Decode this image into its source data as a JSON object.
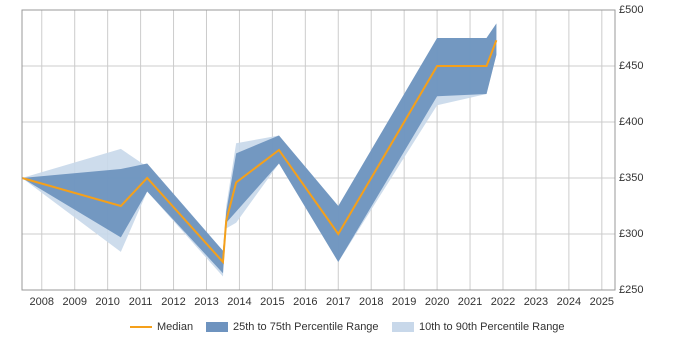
{
  "chart_data": {
    "type": "range_band",
    "x": [
      2007.4,
      2010.4,
      2011.2,
      2013.5,
      2013.6,
      2013.9,
      2015.2,
      2017.0,
      2020.0,
      2021.5,
      2021.8
    ],
    "series": [
      {
        "name": "10th to 90th Percentile Range",
        "color": "#c8d8ea",
        "low": [
          350,
          284,
          338,
          262,
          305,
          310,
          363,
          275,
          415,
          425,
          460
        ],
        "high": [
          350,
          376,
          360,
          285,
          325,
          381,
          388,
          325,
          475,
          475,
          488
        ]
      },
      {
        "name": "25th to 75th Percentile Range",
        "color": "#6e93bf",
        "low": [
          350,
          297,
          338,
          265,
          310,
          320,
          363,
          275,
          423,
          425,
          460
        ],
        "high": [
          350,
          358,
          363,
          285,
          320,
          372,
          388,
          325,
          475,
          475,
          488
        ]
      },
      {
        "name": "Median",
        "color": "#f5a01a",
        "values": [
          350,
          325,
          350,
          275,
          312,
          346,
          375,
          300,
          450,
          450,
          473
        ]
      }
    ],
    "xlim": [
      2007.4,
      2025.4
    ],
    "xticks": [
      2008,
      2009,
      2010,
      2011,
      2012,
      2013,
      2014,
      2015,
      2016,
      2017,
      2018,
      2019,
      2020,
      2021,
      2022,
      2023,
      2024,
      2025
    ],
    "ylim": [
      250,
      500
    ],
    "yticks": [
      {
        "value": 250,
        "label": "£250"
      },
      {
        "value": 300,
        "label": "£300"
      },
      {
        "value": 350,
        "label": "£350"
      },
      {
        "value": 400,
        "label": "£400"
      },
      {
        "value": 450,
        "label": "£450"
      },
      {
        "value": 500,
        "label": "£500"
      }
    ],
    "grid": true,
    "legend": "bottom"
  }
}
